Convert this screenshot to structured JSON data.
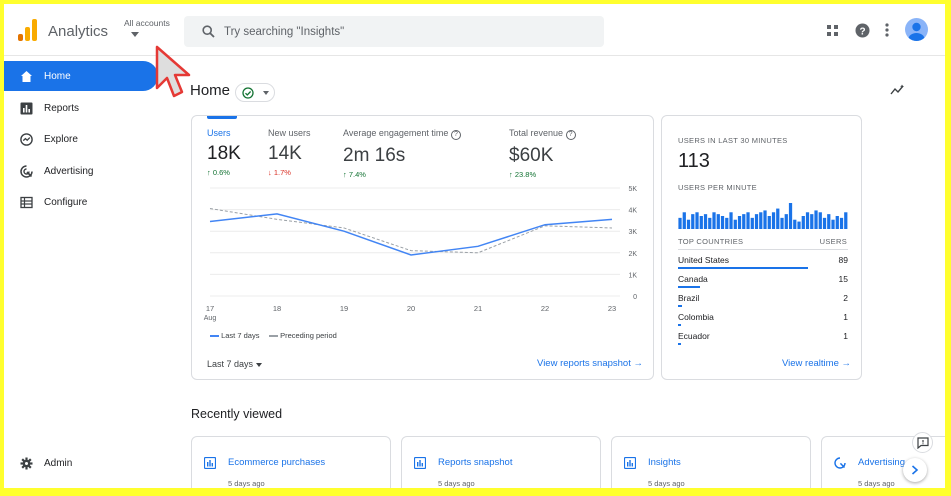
{
  "topbar": {
    "app_title": "Analytics",
    "account_selector": "All accounts",
    "search_placeholder": "Try searching \"Insights\"",
    "icons": [
      "apps-grid-icon",
      "help-icon",
      "more-vert-icon",
      "account-avatar"
    ]
  },
  "sidebar": {
    "items": [
      {
        "label": "Home",
        "icon": "home-icon",
        "active": true
      },
      {
        "label": "Reports",
        "icon": "bar-chart-icon"
      },
      {
        "label": "Explore",
        "icon": "explore-icon"
      },
      {
        "label": "Advertising",
        "icon": "advertising-icon"
      },
      {
        "label": "Configure",
        "icon": "configure-icon"
      }
    ],
    "admin": "Admin"
  },
  "page": {
    "title": "Home"
  },
  "overview": {
    "metrics": [
      {
        "label": "Users",
        "value": "18K",
        "change": "0.6%",
        "direction": "up"
      },
      {
        "label": "New users",
        "value": "14K",
        "change": "1.7%",
        "direction": "down"
      },
      {
        "label": "Average engagement time",
        "value": "2m 16s",
        "change": "7.4%",
        "direction": "up"
      },
      {
        "label": "Total revenue",
        "value": "$60K",
        "change": "23.8%",
        "direction": "up"
      }
    ],
    "date_range": "Last 7 days",
    "link": "View reports snapshot"
  },
  "chart_data": {
    "type": "line",
    "x": [
      "17",
      "18",
      "19",
      "20",
      "21",
      "22",
      "23"
    ],
    "x_sublabel": "Aug",
    "y_ticks": [
      "0",
      "1K",
      "2K",
      "3K",
      "4K",
      "5K"
    ],
    "ylim": [
      0,
      5000
    ],
    "series": [
      {
        "name": "Last 7 days",
        "values": [
          3450,
          3800,
          3000,
          1900,
          2300,
          3300,
          3550
        ],
        "color": "#4285f4",
        "dash": false
      },
      {
        "name": "Preceding period",
        "values": [
          4050,
          3550,
          3150,
          2100,
          2000,
          3250,
          3150
        ],
        "color": "#9aa0a6",
        "dash": true
      }
    ],
    "grid": true,
    "legend": "bottom-left"
  },
  "realtime": {
    "label": "USERS IN LAST 30 MINUTES",
    "count": "113",
    "per_minute_label": "USERS PER MINUTE",
    "per_minute": [
      6,
      9,
      5,
      8,
      9,
      7,
      8,
      6,
      9,
      8,
      7,
      6,
      9,
      5,
      7,
      8,
      9,
      6,
      8,
      9,
      10,
      7,
      9,
      11,
      6,
      8,
      14,
      5,
      4,
      7,
      9,
      8,
      10,
      9,
      6,
      8,
      5,
      7,
      6,
      9
    ],
    "countries_header": "TOP COUNTRIES",
    "users_header": "USERS",
    "countries": [
      {
        "name": "United States",
        "users": "89",
        "share": 1.0
      },
      {
        "name": "Canada",
        "users": "15",
        "share": 0.17
      },
      {
        "name": "Brazil",
        "users": "2",
        "share": 0.03
      },
      {
        "name": "Colombia",
        "users": "1",
        "share": 0.02
      },
      {
        "name": "Ecuador",
        "users": "1",
        "share": 0.02
      }
    ],
    "link": "View realtime"
  },
  "recent": {
    "title": "Recently viewed",
    "items": [
      {
        "name": "Ecommerce purchases",
        "time": "5 days ago",
        "icon": "report-icon"
      },
      {
        "name": "Reports snapshot",
        "time": "5 days ago",
        "icon": "report-icon"
      },
      {
        "name": "Insights",
        "time": "5 days ago",
        "icon": "report-icon"
      },
      {
        "name": "Advertising",
        "time": "5 days ago",
        "icon": "advertising-icon"
      }
    ]
  },
  "colors": {
    "accent": "#1a73e8",
    "highlight_border": "#ffff2e",
    "logo": "#f9ab00",
    "up": "#137333",
    "down": "#d93025"
  }
}
